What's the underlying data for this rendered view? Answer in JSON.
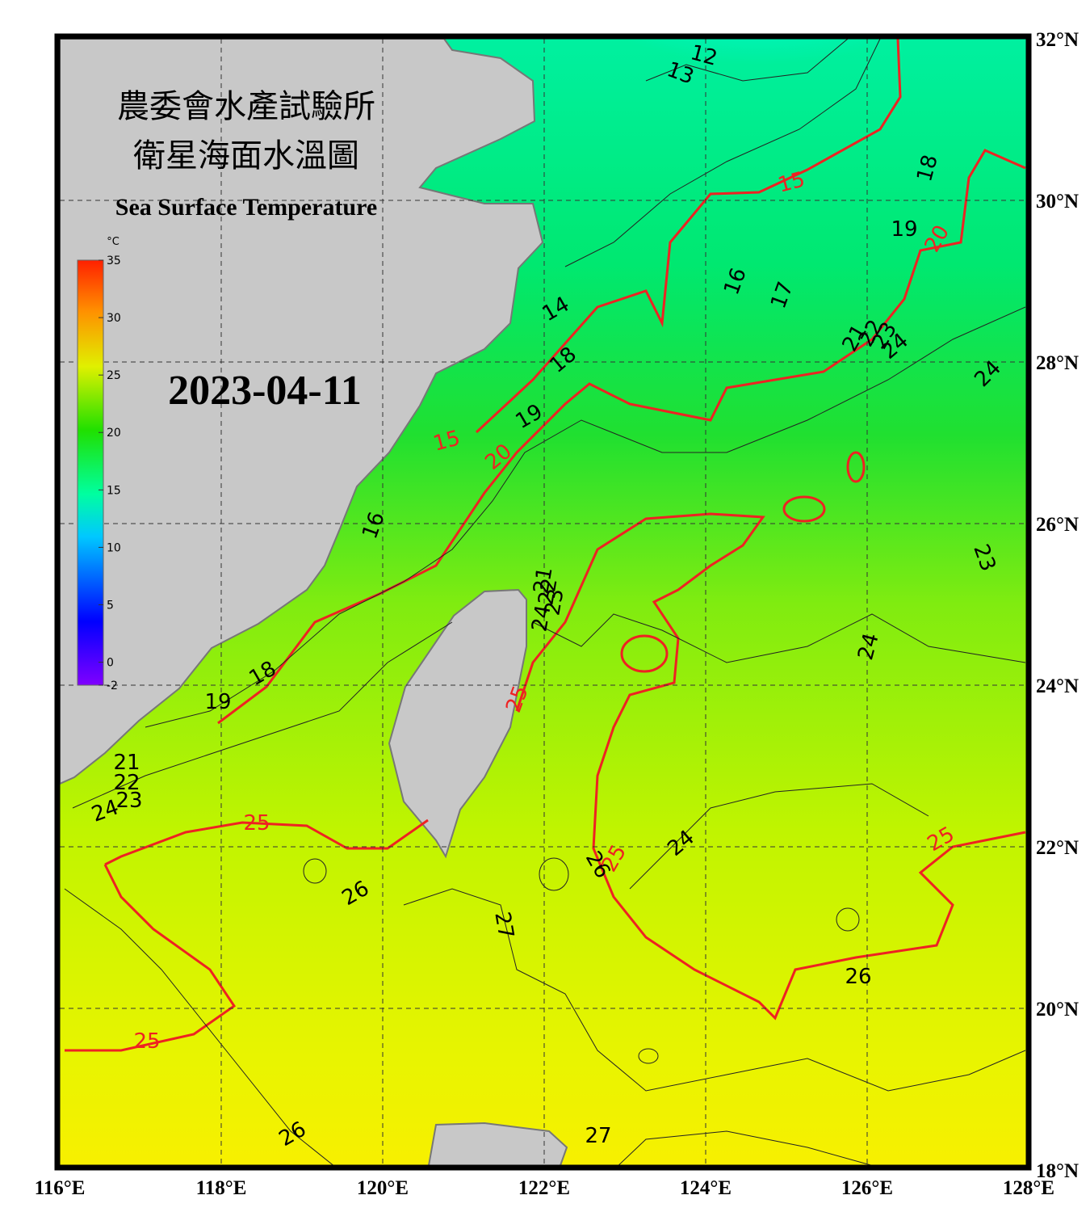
{
  "header": {
    "title_line1": "農委會水產試驗所",
    "title_line2": "衛星海面水溫圖",
    "subtitle": "Sea Surface Temperature",
    "date": "2023-04-11"
  },
  "colorbar": {
    "unit": "°C",
    "ticks": [
      -2,
      0,
      5,
      10,
      15,
      20,
      25,
      30,
      35
    ],
    "range": [
      -2,
      35
    ]
  },
  "map": {
    "lon_ticks": [
      {
        "value": 116,
        "label": "116°E"
      },
      {
        "value": 118,
        "label": "118°E"
      },
      {
        "value": 120,
        "label": "120°E"
      },
      {
        "value": 122,
        "label": "122°E"
      },
      {
        "value": 124,
        "label": "124°E"
      },
      {
        "value": 126,
        "label": "126°E"
      },
      {
        "value": 128,
        "label": "128°E"
      }
    ],
    "lat_ticks": [
      {
        "value": 18,
        "label": "18°N"
      },
      {
        "value": 20,
        "label": "20°N"
      },
      {
        "value": 22,
        "label": "22°N"
      },
      {
        "value": 24,
        "label": "24°N"
      },
      {
        "value": 26,
        "label": "26°N"
      },
      {
        "value": 28,
        "label": "28°N"
      },
      {
        "value": 30,
        "label": "30°N"
      },
      {
        "value": 32,
        "label": "32°N"
      }
    ],
    "lon_range": [
      116,
      128
    ],
    "lat_range": [
      18,
      32
    ],
    "contour_labels": [
      12,
      13,
      15,
      18,
      19,
      20,
      16,
      17,
      14,
      18,
      21,
      22,
      23,
      24,
      24,
      19,
      15,
      20,
      16,
      23,
      24,
      18,
      19,
      21,
      22,
      23,
      24,
      25,
      24,
      25,
      26,
      25,
      26,
      27,
      26,
      25,
      26,
      27,
      21,
      22,
      23,
      24,
      25
    ]
  }
}
